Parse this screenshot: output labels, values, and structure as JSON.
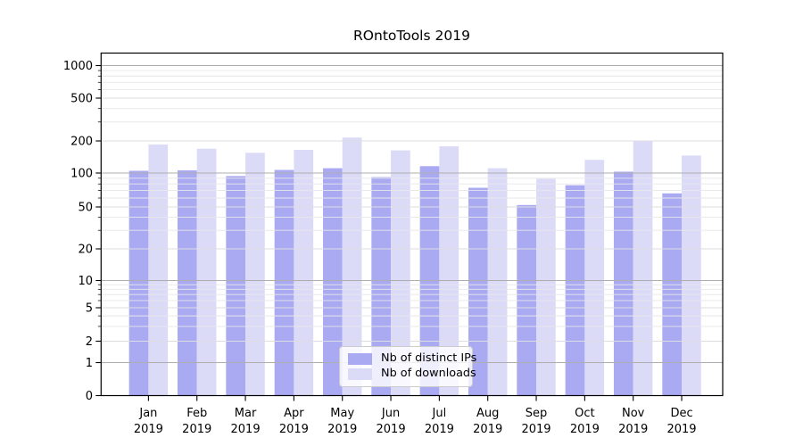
{
  "chart_data": {
    "type": "bar",
    "title": "ROntoTools 2019",
    "categories": [
      "Jan",
      "Feb",
      "Mar",
      "Apr",
      "May",
      "Jun",
      "Jul",
      "Aug",
      "Sep",
      "Oct",
      "Nov",
      "Dec"
    ],
    "category_year": "2019",
    "series": [
      {
        "name": "Nb of distinct IPs",
        "color": "#aaaaf2",
        "values": [
          105,
          106,
          94,
          107,
          111,
          92,
          116,
          74,
          52,
          78,
          103,
          66
        ]
      },
      {
        "name": "Nb of downloads",
        "color": "#dbdbf8",
        "values": [
          185,
          169,
          155,
          165,
          215,
          163,
          178,
          111,
          89,
          133,
          198,
          146
        ]
      }
    ],
    "y_axis": {
      "scale": "symlog",
      "tick_values": [
        0,
        1,
        2,
        5,
        10,
        20,
        50,
        100,
        200,
        500,
        1000
      ],
      "tick_labels": [
        "0",
        "1",
        "2",
        "5",
        "10",
        "20",
        "50",
        "100",
        "200",
        "500",
        "1000"
      ],
      "range_top": 1000
    },
    "x_axis": {
      "tick_line1": [
        "Jan",
        "Feb",
        "Mar",
        "Apr",
        "May",
        "Jun",
        "Jul",
        "Aug",
        "Sep",
        "Oct",
        "Nov",
        "Dec"
      ],
      "tick_line2": "2019"
    },
    "legend": {
      "position": "lower-center",
      "items": [
        "Nb of distinct IPs",
        "Nb of downloads"
      ]
    },
    "grid": true,
    "colors": {
      "background": "#ffffff",
      "grid_major": "#aeaeae",
      "grid_minor": "#e7e7ea",
      "axis": "#000000"
    }
  }
}
